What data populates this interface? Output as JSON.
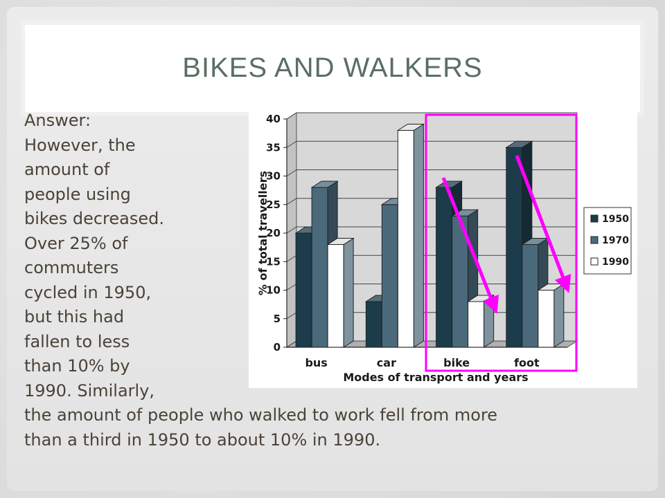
{
  "slide": {
    "title": "BIKES AND WALKERS",
    "body_lines": [
      "Answer:",
      "However, the",
      "amount of",
      "people using",
      "bikes decreased.",
      "Over 25% of",
      "commuters",
      "cycled in 1950,",
      "but this had",
      "fallen to less",
      "than 10% by",
      "1990.  Similarly,",
      "the amount of people who walked to work fell from more",
      "than a third in 1950 to about 10% in 1990."
    ]
  },
  "colors": {
    "title": "#5b6e63",
    "body_text": "#4a4238",
    "highlight": "#ff00ff",
    "series": [
      "#1c3c4c",
      "#4a6a7c",
      "#ffffff"
    ],
    "plot_wall": "#d8d8d8"
  },
  "chart_data": {
    "type": "bar",
    "style": "3d-clustered",
    "categories": [
      "bus",
      "car",
      "bike",
      "foot"
    ],
    "series": [
      {
        "name": "1950",
        "values": [
          20,
          8,
          28,
          35
        ]
      },
      {
        "name": "1970",
        "values": [
          28,
          25,
          23,
          18
        ]
      },
      {
        "name": "1990",
        "values": [
          18,
          38,
          8,
          10
        ]
      }
    ],
    "xlabel": "Modes of transport and years",
    "ylabel": "% of total travellers",
    "ylim": [
      0,
      40
    ],
    "yticks": [
      "0",
      "5",
      "10",
      "15",
      "20",
      "25",
      "30",
      "35",
      "40"
    ],
    "grid": true,
    "legend_position": "right",
    "annotations": {
      "highlight_box": "bike and foot groups",
      "arrows": [
        "bike 1950 to 1990",
        "foot 1950 to 1990"
      ]
    }
  }
}
